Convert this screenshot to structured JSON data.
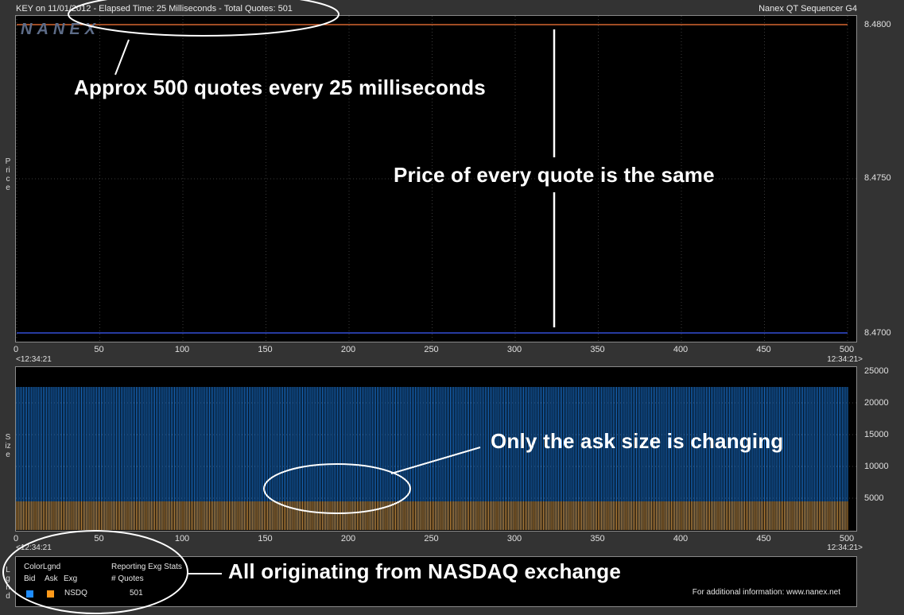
{
  "header": {
    "left_text": "KEY on 11/01/2012  -  Elapsed Time: 25 Milliseconds  -  Total Quotes: 501",
    "right_text": "Nanex QT Sequencer G4"
  },
  "watermark": "NANEX",
  "price_panel": {
    "axis_label": "Price",
    "y_ticks": [
      "8.4800",
      "8.4750",
      "8.4700"
    ]
  },
  "size_panel": {
    "axis_label": "Size",
    "y_ticks": [
      "25000",
      "20000",
      "15000",
      "10000",
      "5000"
    ]
  },
  "x_axis": {
    "ticks": [
      "0",
      "50",
      "100",
      "150",
      "200",
      "250",
      "300",
      "350",
      "400",
      "450",
      "500"
    ],
    "time_left": "<12:34:21",
    "time_right": "12:34:21>"
  },
  "legend": {
    "side_label": "Lgnd",
    "color_legend_title": "ColorLgnd",
    "bid_label": "Bid",
    "ask_label": "Ask",
    "exg_label": "Exg",
    "stats_title": "Reporting Exg Stats",
    "quotes_label": "# Quotes",
    "exchange": "NSDQ",
    "quote_count": "501",
    "footer": "For additional information: www.nanex.net"
  },
  "annotations": {
    "quotes_rate": "Approx 500 quotes every 25 milliseconds",
    "same_price": "Price of every quote is the same",
    "ask_changing": "Only the ask size is changing",
    "nasdaq": "All originating from NASDAQ exchange"
  },
  "colors": {
    "bid": "#1e8cff",
    "ask": "#ff9a1a",
    "ask_price_line": "#ff7a3a",
    "bid_price_line": "#3c5cff",
    "background": "#000000",
    "frame": "#333333"
  },
  "chart_data": [
    {
      "type": "line",
      "title": "",
      "xlabel": "",
      "ylabel": "Price",
      "x_range": [
        0,
        500
      ],
      "ylim": [
        8.47,
        8.48
      ],
      "grid": true,
      "series": [
        {
          "name": "Ask",
          "x": [
            0,
            500
          ],
          "values": [
            8.48,
            8.48
          ]
        },
        {
          "name": "Bid",
          "x": [
            0,
            500
          ],
          "values": [
            8.47,
            8.47
          ]
        }
      ]
    },
    {
      "type": "bar",
      "title": "",
      "xlabel": "",
      "ylabel": "Size",
      "x_range": [
        0,
        500
      ],
      "ylim": [
        0,
        25000
      ],
      "quote_count": 501,
      "grid": true,
      "series": [
        {
          "name": "Bid",
          "value_each_quote": 22500
        },
        {
          "name": "Ask",
          "value_each_quote": 4500
        }
      ]
    }
  ]
}
